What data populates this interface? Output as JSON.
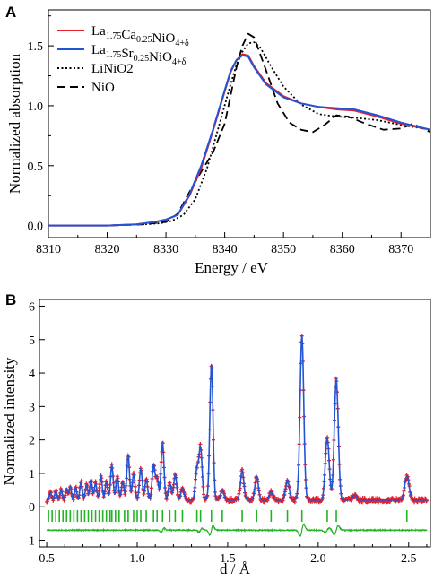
{
  "figure": {
    "panel_a_letter": "A",
    "panel_b_letter": "B"
  },
  "chart_data": [
    {
      "type": "line",
      "panel": "A",
      "xlabel": "Energy / eV",
      "ylabel": "Normalized absorption",
      "xlim": [
        8310,
        8375
      ],
      "ylim": [
        -0.1,
        1.8
      ],
      "xticks": [
        8310,
        8320,
        8330,
        8340,
        8350,
        8360,
        8370
      ],
      "yticks": [
        0.0,
        0.5,
        1.0,
        1.5
      ],
      "ytick_labels": [
        "0.0",
        "0.5",
        "1.0",
        "1.5"
      ],
      "grid": false,
      "legend_position": "top-left",
      "legend": [
        {
          "main": "La",
          "sub1": "1.75",
          "mid": "Ca",
          "sub2": "0.25",
          "tail": "NiO",
          "sub3": "4+δ",
          "color": "#e8202a",
          "dash": "solid"
        },
        {
          "main": "La",
          "sub1": "1.75",
          "mid": "Sr",
          "sub2": "0.25",
          "tail": "NiO",
          "sub3": "4+δ",
          "color": "#2255d6",
          "dash": "solid"
        },
        {
          "main": "LiNiO2",
          "color": "#000000",
          "dash": "dotted"
        },
        {
          "main": "NiO",
          "color": "#000000",
          "dash": "dashed"
        }
      ],
      "series": [
        {
          "color": "#e8202a",
          "x": [
            8310,
            8320,
            8325,
            8328,
            8330,
            8332,
            8334,
            8336,
            8338,
            8340,
            8341,
            8342,
            8343,
            8344,
            8345,
            8347,
            8350,
            8353,
            8356,
            8359,
            8362,
            8366,
            8370,
            8375
          ],
          "y": [
            0.0,
            0.0,
            0.01,
            0.03,
            0.05,
            0.09,
            0.25,
            0.48,
            0.79,
            1.12,
            1.28,
            1.38,
            1.43,
            1.42,
            1.33,
            1.19,
            1.08,
            1.02,
            0.99,
            0.97,
            0.96,
            0.91,
            0.85,
            0.8
          ]
        },
        {
          "color": "#2255d6",
          "x": [
            8310,
            8320,
            8325,
            8328,
            8330,
            8332,
            8334,
            8336,
            8338,
            8340,
            8341,
            8342,
            8343,
            8344,
            8345,
            8347,
            8350,
            8353,
            8356,
            8359,
            8362,
            8366,
            8370,
            8375
          ],
          "y": [
            0.0,
            0.0,
            0.01,
            0.03,
            0.05,
            0.09,
            0.26,
            0.5,
            0.8,
            1.13,
            1.29,
            1.38,
            1.42,
            1.41,
            1.32,
            1.18,
            1.07,
            1.02,
            0.99,
            0.98,
            0.97,
            0.92,
            0.86,
            0.8
          ]
        },
        {
          "color": "#000000",
          "x": [
            8310,
            8320,
            8326,
            8329,
            8331,
            8333,
            8335,
            8337,
            8339,
            8341,
            8342,
            8343,
            8344,
            8345,
            8346,
            8348,
            8350,
            8353,
            8356,
            8359,
            8362,
            8366,
            8370,
            8375
          ],
          "y": [
            0.0,
            0.0,
            0.01,
            0.02,
            0.04,
            0.09,
            0.22,
            0.48,
            0.83,
            1.18,
            1.34,
            1.45,
            1.52,
            1.53,
            1.49,
            1.32,
            1.16,
            1.01,
            0.93,
            0.91,
            0.9,
            0.88,
            0.84,
            0.8
          ]
        },
        {
          "color": "#000000",
          "x": [
            8310,
            8320,
            8326,
            8330,
            8332,
            8334,
            8336,
            8338,
            8340,
            8342,
            8343,
            8344,
            8345,
            8347,
            8349,
            8351,
            8353,
            8355,
            8357,
            8359,
            8361,
            8364,
            8367,
            8370,
            8372,
            8375
          ],
          "y": [
            0.0,
            0.0,
            0.01,
            0.03,
            0.1,
            0.28,
            0.45,
            0.61,
            0.85,
            1.32,
            1.5,
            1.6,
            1.57,
            1.3,
            1.02,
            0.86,
            0.8,
            0.78,
            0.84,
            0.92,
            0.91,
            0.85,
            0.8,
            0.81,
            0.85,
            0.78
          ]
        }
      ]
    },
    {
      "type": "line",
      "panel": "B",
      "xlabel": "d / Å",
      "ylabel": "Normalized intensity",
      "xlim": [
        0.46,
        2.62
      ],
      "ylim": [
        -1.2,
        6.2
      ],
      "xticks": [
        0.5,
        1.0,
        1.5,
        2.0,
        2.5
      ],
      "xtick_labels": [
        "0.5",
        "1.0",
        "1.5",
        "2.0",
        "2.5"
      ],
      "yticks": [
        -1,
        0,
        1,
        2,
        3,
        4,
        5,
        6
      ],
      "grid": false,
      "observed_color": "#e8202a",
      "calculated_color": "#2255d6",
      "tick_marks_color": "#22b422",
      "difference_color": "#22b422",
      "baseline": 0.2,
      "peaks": [
        {
          "d": 0.52,
          "h": 0.22
        },
        {
          "d": 0.55,
          "h": 0.28
        },
        {
          "d": 0.58,
          "h": 0.32
        },
        {
          "d": 0.61,
          "h": 0.35
        },
        {
          "d": 0.63,
          "h": 0.4
        },
        {
          "d": 0.66,
          "h": 0.38
        },
        {
          "d": 0.69,
          "h": 0.55
        },
        {
          "d": 0.72,
          "h": 0.45
        },
        {
          "d": 0.745,
          "h": 0.62
        },
        {
          "d": 0.77,
          "h": 0.5
        },
        {
          "d": 0.8,
          "h": 0.72
        },
        {
          "d": 0.83,
          "h": 0.55
        },
        {
          "d": 0.86,
          "h": 1.05
        },
        {
          "d": 0.89,
          "h": 0.7
        },
        {
          "d": 0.92,
          "h": 0.55
        },
        {
          "d": 0.95,
          "h": 1.35
        },
        {
          "d": 0.98,
          "h": 0.78
        },
        {
          "d": 1.02,
          "h": 0.95
        },
        {
          "d": 1.05,
          "h": 0.6
        },
        {
          "d": 1.09,
          "h": 1.05
        },
        {
          "d": 1.11,
          "h": 0.65
        },
        {
          "d": 1.14,
          "h": 1.7
        },
        {
          "d": 1.18,
          "h": 0.5
        },
        {
          "d": 1.21,
          "h": 0.75
        },
        {
          "d": 1.25,
          "h": 0.35
        },
        {
          "d": 1.33,
          "h": 0.9
        },
        {
          "d": 1.35,
          "h": 1.55
        },
        {
          "d": 1.41,
          "h": 4.05
        },
        {
          "d": 1.47,
          "h": 0.3
        },
        {
          "d": 1.58,
          "h": 0.88
        },
        {
          "d": 1.66,
          "h": 0.72
        },
        {
          "d": 1.74,
          "h": 0.25
        },
        {
          "d": 1.83,
          "h": 0.6
        },
        {
          "d": 1.91,
          "h": 4.9
        },
        {
          "d": 2.05,
          "h": 1.85
        },
        {
          "d": 2.1,
          "h": 3.6
        },
        {
          "d": 2.2,
          "h": 0.15
        },
        {
          "d": 2.49,
          "h": 0.72
        }
      ],
      "reflection_positions": [
        0.51,
        0.53,
        0.55,
        0.57,
        0.59,
        0.61,
        0.63,
        0.65,
        0.67,
        0.69,
        0.71,
        0.73,
        0.75,
        0.77,
        0.79,
        0.81,
        0.83,
        0.85,
        0.86,
        0.88,
        0.9,
        0.93,
        0.95,
        0.98,
        1.0,
        1.02,
        1.05,
        1.09,
        1.11,
        1.14,
        1.18,
        1.21,
        1.25,
        1.33,
        1.35,
        1.41,
        1.47,
        1.58,
        1.66,
        1.74,
        1.83,
        1.91,
        2.05,
        2.1,
        2.49
      ]
    }
  ]
}
